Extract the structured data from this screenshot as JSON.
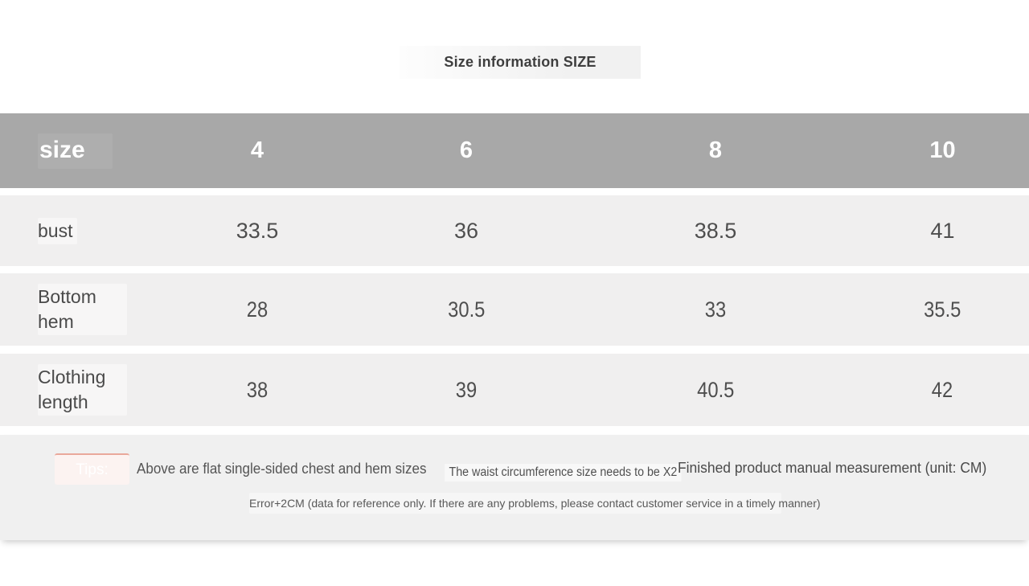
{
  "title": "Size information SIZE",
  "chart_data": {
    "type": "table",
    "title": "Size information SIZE",
    "columns": [
      "size",
      "4",
      "6",
      "8",
      "10"
    ],
    "rows": [
      [
        "bust",
        "33.5",
        "36",
        "38.5",
        "41"
      ],
      [
        "Bottom hem",
        "28",
        "30.5",
        "33",
        "35.5"
      ],
      [
        "Clothing length",
        "38",
        "39",
        "40.5",
        "42"
      ]
    ],
    "unit": "CM"
  },
  "table": {
    "header": {
      "label": "size",
      "columns": [
        "4",
        "6",
        "8",
        "10"
      ]
    },
    "rows": [
      {
        "label": "bust",
        "values": [
          "33.5",
          "36",
          "38.5",
          "41"
        ]
      },
      {
        "label": "Bottom hem",
        "values": [
          "28",
          "30.5",
          "33",
          "35.5"
        ]
      },
      {
        "label": "Clothing length",
        "values": [
          "38",
          "39",
          "40.5",
          "42"
        ]
      }
    ]
  },
  "footer": {
    "tips_label": "Tips:",
    "note_left": "Above are flat single-sided chest and hem sizes",
    "note_middle": "The waist circumference size needs to be X2",
    "note_right": "Finished product manual measurement (unit: CM)",
    "note_bottom": "Error+2CM (data for reference only. If there are any problems, please contact customer service in a timely manner)"
  },
  "colors": {
    "header_bg": "#a8a8a8",
    "header_text": "#ffffff",
    "row_bg": "#f0efef",
    "body_text": "#4e4e4e",
    "footer_bg": "#f0f0f0",
    "tips_badge_bg": "#fcf3f1",
    "tips_badge_border": "#e9a89b"
  }
}
